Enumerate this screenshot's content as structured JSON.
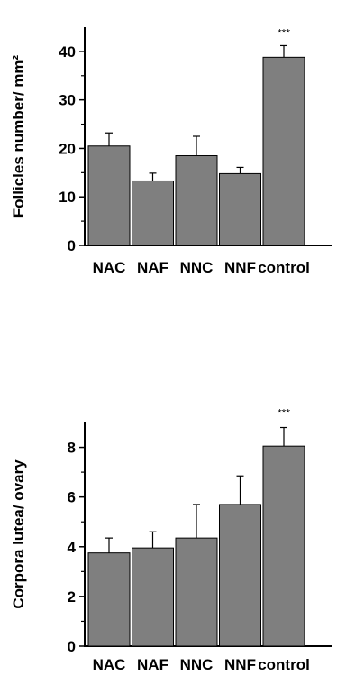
{
  "chart_data": [
    {
      "type": "bar",
      "categories": [
        "NAC",
        "NAF",
        "NNC",
        "NNF",
        "control"
      ],
      "values": [
        20.5,
        13.3,
        18.5,
        14.8,
        38.8
      ],
      "errors": [
        2.7,
        1.6,
        4.0,
        1.3,
        2.4
      ],
      "significance": [
        "",
        "",
        "",
        "",
        "***"
      ],
      "ylabel": "Follicles number/ mm²",
      "ylim": [
        0,
        45
      ],
      "yticks": [
        0,
        10,
        20,
        30,
        40
      ],
      "bar_color": "#7f7f7f"
    },
    {
      "type": "bar",
      "categories": [
        "NAC",
        "NAF",
        "NNC",
        "NNF",
        "control"
      ],
      "values": [
        3.75,
        3.95,
        4.35,
        5.7,
        8.05
      ],
      "errors": [
        0.6,
        0.65,
        1.35,
        1.15,
        0.75
      ],
      "significance": [
        "",
        "",
        "",
        "",
        "***"
      ],
      "ylabel": "Corpora lutea/ ovary",
      "ylim": [
        0,
        9
      ],
      "yticks": [
        0,
        2,
        4,
        6,
        8
      ],
      "bar_color": "#7f7f7f"
    }
  ]
}
